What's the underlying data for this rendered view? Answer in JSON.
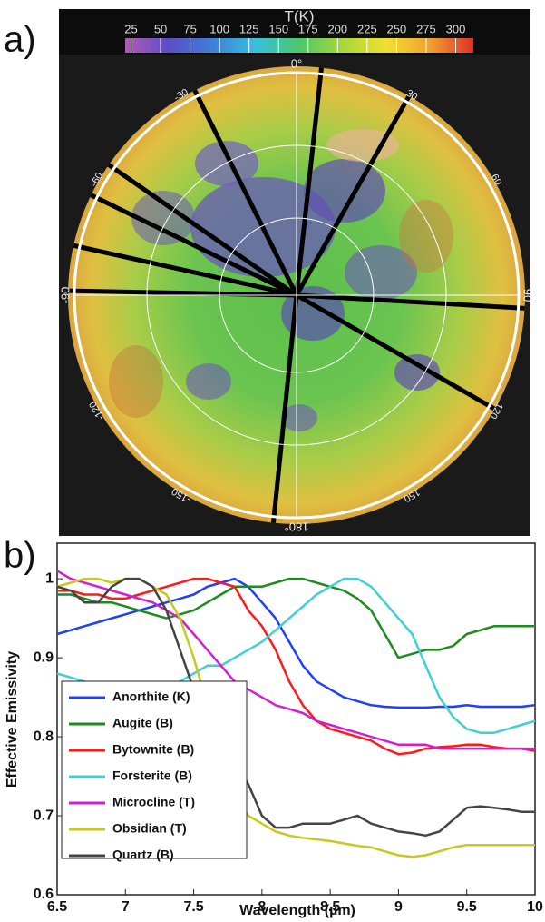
{
  "chart_data": [
    {
      "type": "map",
      "panel_label": "a)",
      "colorbar": {
        "label": "T(K)",
        "ticks": [
          25,
          50,
          75,
          100,
          125,
          150,
          175,
          200,
          225,
          250,
          275,
          300
        ],
        "clim": [
          20,
          315
        ],
        "colormap": [
          "#b45ab4",
          "#5a4ec8",
          "#3f7fd8",
          "#35c0e0",
          "#4cc86a",
          "#a8d838",
          "#f0e030",
          "#f0a030",
          "#e03028"
        ]
      },
      "angle_labels": [
        "0°",
        "30",
        "60",
        "90",
        "120",
        "150",
        "180°",
        "-150",
        "-120",
        "-90",
        "-60",
        "-30"
      ]
    },
    {
      "type": "line",
      "panel_label": "b)",
      "xlabel": "Wavelength (µm)",
      "ylabel": "Effective Emissivity",
      "xlim": [
        6.5,
        10
      ],
      "ylim": [
        0.6,
        1.045
      ],
      "xticks": [
        6.5,
        7,
        7.5,
        8,
        8.5,
        9,
        9.5,
        10
      ],
      "yticks": [
        0.6,
        0.7,
        0.8,
        0.9,
        1
      ],
      "legend": "lower left",
      "x": [
        6.5,
        6.6,
        6.7,
        6.8,
        6.9,
        7.0,
        7.1,
        7.2,
        7.3,
        7.4,
        7.5,
        7.6,
        7.7,
        7.8,
        7.9,
        8.0,
        8.1,
        8.2,
        8.3,
        8.4,
        8.5,
        8.6,
        8.7,
        8.8,
        8.9,
        9.0,
        9.1,
        9.2,
        9.3,
        9.4,
        9.5,
        9.6,
        9.7,
        9.8,
        9.9,
        10.0
      ],
      "series": [
        {
          "name": "Anorthite (K)",
          "color": "#1f3fff",
          "values": [
            0.93,
            0.935,
            0.94,
            0.945,
            0.95,
            0.955,
            0.96,
            0.965,
            0.97,
            0.975,
            0.98,
            0.99,
            0.995,
            1.0,
            0.99,
            0.97,
            0.95,
            0.92,
            0.89,
            0.87,
            0.86,
            0.85,
            0.845,
            0.84,
            0.838,
            0.837,
            0.837,
            0.837,
            0.838,
            0.838,
            0.84,
            0.838,
            0.838,
            0.838,
            0.838,
            0.84
          ]
        },
        {
          "name": "Augite (B)",
          "color": "#1f8a1f",
          "values": [
            0.98,
            0.98,
            0.975,
            0.97,
            0.97,
            0.965,
            0.96,
            0.955,
            0.95,
            0.955,
            0.96,
            0.97,
            0.98,
            0.99,
            0.99,
            0.99,
            0.995,
            1.0,
            1.0,
            0.995,
            0.99,
            0.985,
            0.975,
            0.96,
            0.93,
            0.9,
            0.905,
            0.91,
            0.91,
            0.915,
            0.93,
            0.935,
            0.94,
            0.94,
            0.94,
            0.94
          ]
        },
        {
          "name": "Bytownite (B)",
          "color": "#ff1a1a",
          "values": [
            0.985,
            0.985,
            0.98,
            0.98,
            0.975,
            0.975,
            0.98,
            0.985,
            0.99,
            0.995,
            1.0,
            1.0,
            0.995,
            0.99,
            0.96,
            0.94,
            0.91,
            0.87,
            0.84,
            0.82,
            0.81,
            0.805,
            0.8,
            0.795,
            0.785,
            0.778,
            0.78,
            0.785,
            0.787,
            0.788,
            0.79,
            0.79,
            0.787,
            0.785,
            0.785,
            0.782
          ]
        },
        {
          "name": "Forsterite (B)",
          "color": "#40d0d0",
          "values": [
            0.88,
            0.875,
            0.87,
            0.865,
            0.86,
            0.86,
            0.86,
            0.86,
            0.865,
            0.87,
            0.88,
            0.89,
            0.89,
            0.9,
            0.91,
            0.92,
            0.935,
            0.95,
            0.965,
            0.98,
            0.99,
            1.0,
            1.0,
            0.99,
            0.97,
            0.95,
            0.93,
            0.89,
            0.85,
            0.825,
            0.81,
            0.805,
            0.805,
            0.81,
            0.815,
            0.82
          ]
        },
        {
          "name": "Microcline (T)",
          "color": "#d020d0",
          "values": [
            1.01,
            1.0,
            0.995,
            0.99,
            0.985,
            0.98,
            0.975,
            0.97,
            0.96,
            0.95,
            0.93,
            0.91,
            0.89,
            0.87,
            0.86,
            0.85,
            0.84,
            0.835,
            0.83,
            0.82,
            0.815,
            0.81,
            0.805,
            0.8,
            0.795,
            0.79,
            0.79,
            0.79,
            0.785,
            0.785,
            0.785,
            0.785,
            0.785,
            0.785,
            0.785,
            0.785
          ]
        },
        {
          "name": "Obsidian (T)",
          "color": "#c8c820",
          "values": [
            0.99,
            0.995,
            1.0,
            1.0,
            0.995,
            1.0,
            1.0,
            0.99,
            0.98,
            0.95,
            0.9,
            0.84,
            0.78,
            0.73,
            0.7,
            0.69,
            0.68,
            0.675,
            0.672,
            0.67,
            0.668,
            0.665,
            0.662,
            0.66,
            0.655,
            0.65,
            0.648,
            0.65,
            0.655,
            0.66,
            0.663,
            0.663,
            0.663,
            0.663,
            0.663,
            0.663
          ]
        },
        {
          "name": "Quartz (B)",
          "color": "#444444",
          "values": [
            0.99,
            0.985,
            0.97,
            0.97,
            0.99,
            1.0,
            1.0,
            0.99,
            0.96,
            0.91,
            0.86,
            0.82,
            0.79,
            0.77,
            0.74,
            0.7,
            0.685,
            0.685,
            0.69,
            0.69,
            0.69,
            0.695,
            0.7,
            0.69,
            0.685,
            0.68,
            0.678,
            0.675,
            0.68,
            0.695,
            0.71,
            0.712,
            0.71,
            0.708,
            0.705,
            0.705
          ]
        }
      ]
    }
  ]
}
